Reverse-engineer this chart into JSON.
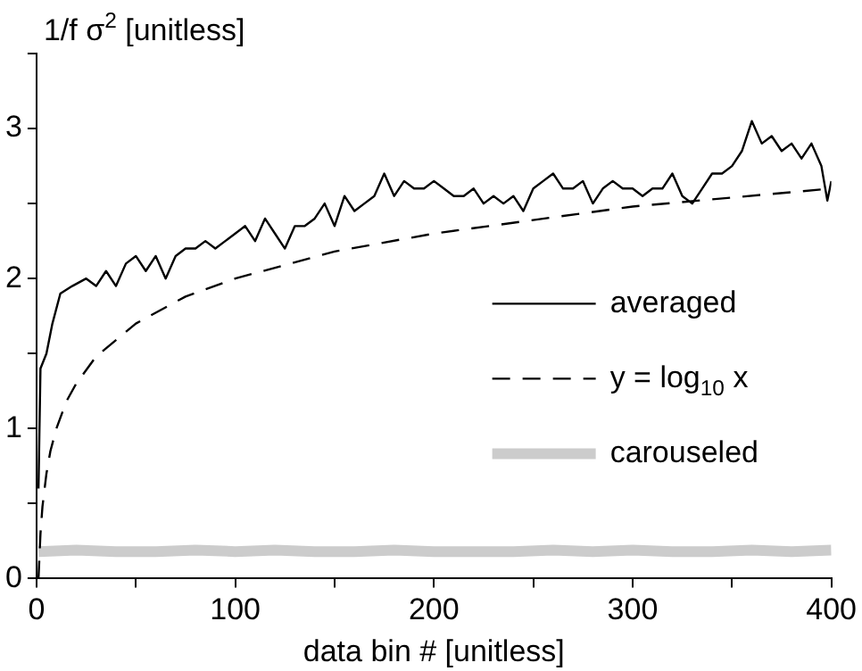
{
  "chart_data": {
    "type": "line",
    "ylabel": "1/f σ$^{2}$ [unitless]",
    "xlabel": "data bin # [unitless]",
    "xlim": [
      0,
      400
    ],
    "xticks": [
      0,
      {
        "value": 50,
        "label": null
      },
      100,
      {
        "value": 150,
        "label": null
      },
      200,
      {
        "value": 250,
        "label": null
      },
      300,
      {
        "value": 350,
        "label": null
      },
      400
    ],
    "ylim": [
      0,
      3.5
    ],
    "yticks": [
      0,
      {
        "value": 0.5,
        "label": null
      },
      1,
      {
        "value": 1.5,
        "label": null
      },
      2,
      {
        "value": 2.5,
        "label": null
      },
      3,
      {
        "value": 3.5,
        "label": null
      }
    ],
    "grid": false,
    "legend": "bottom right",
    "marker": "none",
    "series": [
      {
        "name": "averaged",
        "color": "#000000",
        "line_style": "solid",
        "x": [
          1,
          2,
          5,
          8,
          12,
          18,
          25,
          30,
          35,
          40,
          45,
          50,
          55,
          60,
          65,
          70,
          75,
          80,
          85,
          90,
          95,
          100,
          105,
          110,
          115,
          120,
          125,
          130,
          135,
          140,
          145,
          150,
          155,
          160,
          165,
          170,
          175,
          180,
          185,
          190,
          195,
          200,
          205,
          210,
          215,
          220,
          225,
          230,
          235,
          240,
          245,
          250,
          255,
          260,
          265,
          270,
          275,
          280,
          285,
          290,
          295,
          300,
          305,
          310,
          315,
          320,
          325,
          330,
          335,
          340,
          345,
          350,
          355,
          360,
          365,
          370,
          375,
          380,
          385,
          390,
          395,
          398,
          400
        ],
        "values": [
          0.6,
          1.4,
          1.5,
          1.7,
          1.9,
          1.95,
          2.0,
          1.95,
          2.05,
          1.95,
          2.1,
          2.15,
          2.05,
          2.15,
          2.0,
          2.15,
          2.2,
          2.2,
          2.25,
          2.2,
          2.25,
          2.3,
          2.35,
          2.25,
          2.4,
          2.3,
          2.2,
          2.35,
          2.35,
          2.4,
          2.5,
          2.35,
          2.55,
          2.45,
          2.5,
          2.55,
          2.7,
          2.55,
          2.65,
          2.6,
          2.6,
          2.65,
          2.6,
          2.55,
          2.55,
          2.6,
          2.5,
          2.55,
          2.5,
          2.55,
          2.45,
          2.6,
          2.65,
          2.7,
          2.6,
          2.6,
          2.65,
          2.5,
          2.6,
          2.65,
          2.6,
          2.6,
          2.55,
          2.6,
          2.6,
          2.7,
          2.55,
          2.5,
          2.6,
          2.7,
          2.7,
          2.75,
          2.85,
          3.05,
          2.9,
          2.95,
          2.85,
          2.9,
          2.8,
          2.9,
          2.75,
          2.52,
          2.65
        ]
      },
      {
        "name": "y = log$_{10}$ x",
        "color": "#000000",
        "line_style": "dashed",
        "x": [
          1,
          2,
          3,
          5,
          7,
          10,
          15,
          20,
          30,
          50,
          75,
          100,
          150,
          200,
          300,
          400
        ],
        "values": [
          0,
          0.3,
          0.48,
          0.7,
          0.85,
          1,
          1.18,
          1.3,
          1.48,
          1.7,
          1.88,
          2,
          2.18,
          2.3,
          2.48,
          2.6
        ]
      },
      {
        "name": "carouseled",
        "color": "#cccccc",
        "line_style": "solid",
        "x": [
          1,
          20,
          40,
          60,
          80,
          100,
          120,
          140,
          160,
          180,
          200,
          220,
          240,
          260,
          280,
          300,
          320,
          340,
          360,
          380,
          400
        ],
        "values": [
          0.18,
          0.19,
          0.18,
          0.18,
          0.19,
          0.18,
          0.19,
          0.18,
          0.18,
          0.19,
          0.18,
          0.18,
          0.18,
          0.19,
          0.18,
          0.19,
          0.18,
          0.18,
          0.19,
          0.18,
          0.19
        ]
      }
    ]
  }
}
